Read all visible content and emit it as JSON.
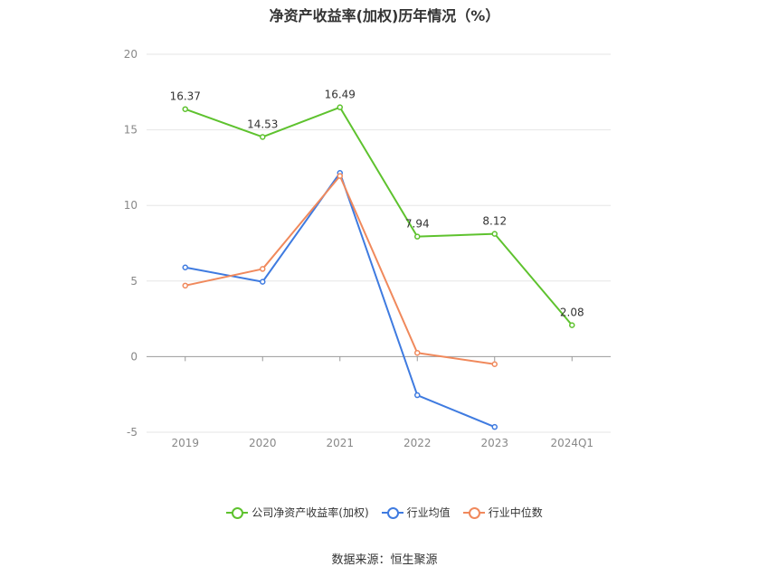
{
  "title": "净资产收益率(加权)历年情况（%）",
  "source": "数据来源：恒生聚源",
  "chart_data": {
    "type": "line",
    "categories": [
      "2019",
      "2020",
      "2021",
      "2022",
      "2023",
      "2024Q1"
    ],
    "ylim": [
      -5,
      20
    ],
    "yticks": [
      -5,
      0,
      5,
      10,
      15,
      20
    ],
    "grid": true,
    "legend_position": "bottom",
    "series": [
      {
        "name": "公司净资产收益率(加权)",
        "color": "#5ec22e",
        "values": [
          16.37,
          14.53,
          16.49,
          7.94,
          8.12,
          2.08
        ],
        "labels": [
          "16.37",
          "14.53",
          "16.49",
          "7.94",
          "8.12",
          "2.08"
        ]
      },
      {
        "name": "行业均值",
        "color": "#3f7be0",
        "values": [
          5.9,
          4.95,
          12.15,
          -2.55,
          -4.65,
          null
        ]
      },
      {
        "name": "行业中位数",
        "color": "#f0895c",
        "values": [
          4.7,
          5.8,
          11.95,
          0.25,
          -0.5,
          null
        ]
      }
    ]
  }
}
